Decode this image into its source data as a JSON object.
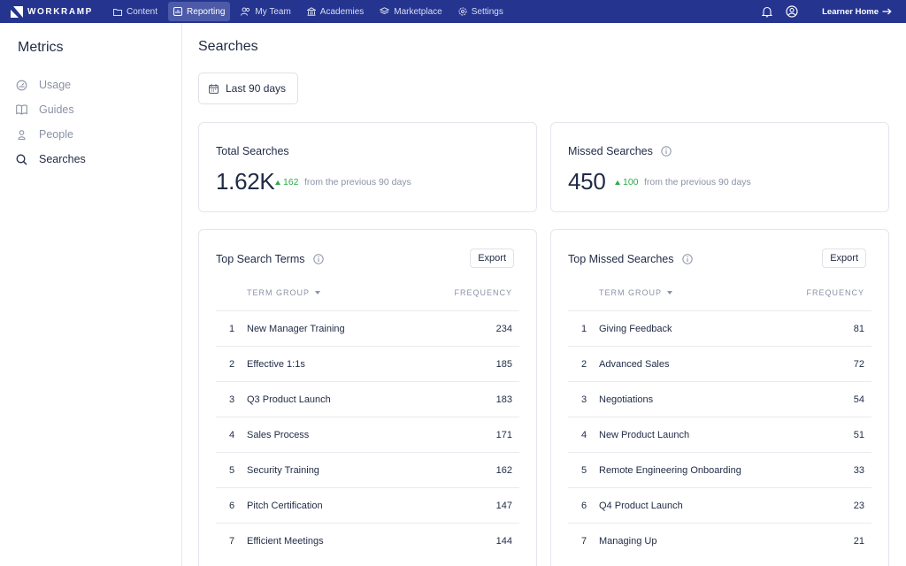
{
  "brand": {
    "name": "WORKRAMP",
    "nav_bg": "#25348f",
    "accent": "#2eaa4b"
  },
  "nav": {
    "items": [
      {
        "label": "Content",
        "icon": "folder-icon"
      },
      {
        "label": "Reporting",
        "icon": "reporting-icon",
        "active": true
      },
      {
        "label": "My Team",
        "icon": "team-icon"
      },
      {
        "label": "Academies",
        "icon": "academies-icon"
      },
      {
        "label": "Marketplace",
        "icon": "marketplace-icon"
      },
      {
        "label": "Settings",
        "icon": "gear-icon"
      }
    ],
    "learner_home": "Learner Home"
  },
  "sidebar": {
    "title": "Metrics",
    "items": [
      {
        "label": "Usage",
        "icon": "gauge-icon"
      },
      {
        "label": "Guides",
        "icon": "book-icon"
      },
      {
        "label": "People",
        "icon": "person-icon"
      },
      {
        "label": "Searches",
        "icon": "search-icon",
        "active": true
      }
    ]
  },
  "main": {
    "title": "Searches",
    "date_range": "Last 90 days",
    "total": {
      "title": "Total Searches",
      "value": "1.62K",
      "delta": "162",
      "note": "from the previous 90 days"
    },
    "missed": {
      "title": "Missed Searches",
      "value": "450",
      "delta": "100",
      "note": "from the previous 90 days"
    },
    "top_terms": {
      "title": "Top Search Terms",
      "export": "Export",
      "col_term": "TERM GROUP",
      "col_freq": "FREQUENCY",
      "rows": [
        {
          "rank": "1",
          "term": "New Manager Training",
          "freq": "234"
        },
        {
          "rank": "2",
          "term": "Effective 1:1s",
          "freq": "185"
        },
        {
          "rank": "3",
          "term": "Q3 Product Launch",
          "freq": "183"
        },
        {
          "rank": "4",
          "term": "Sales Process",
          "freq": "171"
        },
        {
          "rank": "5",
          "term": "Security Training",
          "freq": "162"
        },
        {
          "rank": "6",
          "term": "Pitch Certification",
          "freq": "147"
        },
        {
          "rank": "7",
          "term": "Efficient Meetings",
          "freq": "144"
        }
      ]
    },
    "top_missed": {
      "title": "Top Missed Searches",
      "export": "Export",
      "col_term": "TERM GROUP",
      "col_freq": "FREQUENCY",
      "rows": [
        {
          "rank": "1",
          "term": "Giving Feedback",
          "freq": "81"
        },
        {
          "rank": "2",
          "term": "Advanced Sales",
          "freq": "72"
        },
        {
          "rank": "3",
          "term": "Negotiations",
          "freq": "54"
        },
        {
          "rank": "4",
          "term": "New Product Launch",
          "freq": "51"
        },
        {
          "rank": "5",
          "term": "Remote Engineering Onboarding",
          "freq": "33"
        },
        {
          "rank": "6",
          "term": "Q4 Product Launch",
          "freq": "23"
        },
        {
          "rank": "7",
          "term": "Managing Up",
          "freq": "21"
        }
      ]
    }
  }
}
